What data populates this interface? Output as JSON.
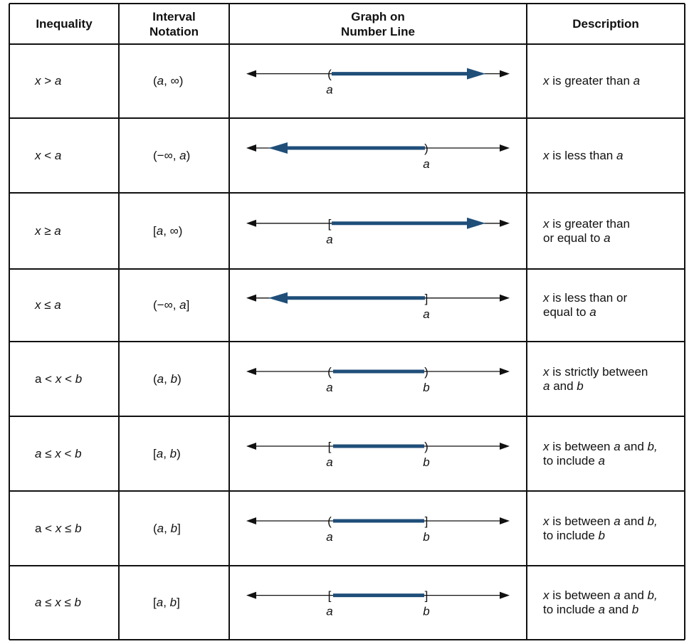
{
  "header": [
    "Inequality",
    "Interval\nNotation",
    "Graph on\nNumber Line",
    "Description"
  ],
  "rows": [
    {
      "inequality": [
        {
          "text": "x",
          "italic": true
        },
        {
          "text": " > "
        },
        {
          "text": "a",
          "italic": true
        }
      ],
      "interval": [
        {
          "text": "("
        },
        {
          "text": "a",
          "italic": true
        },
        {
          "text": ", ∞)"
        }
      ],
      "graph": {
        "from": {
          "bracket": "(",
          "label": "a"
        },
        "ray": "right"
      },
      "description": [
        {
          "text": "x",
          "italic": true
        },
        {
          "text": " is greater than "
        },
        {
          "text": "a",
          "italic": true
        }
      ]
    },
    {
      "inequality": [
        {
          "text": "x",
          "italic": true
        },
        {
          "text": " < "
        },
        {
          "text": "a",
          "italic": true
        }
      ],
      "interval": [
        {
          "text": "(−∞, "
        },
        {
          "text": "a",
          "italic": true
        },
        {
          "text": ")"
        }
      ],
      "graph": {
        "to": {
          "bracket": ")",
          "label": "a"
        },
        "ray": "left"
      },
      "description": [
        {
          "text": "x",
          "italic": true
        },
        {
          "text": " is less than "
        },
        {
          "text": "a",
          "italic": true
        }
      ]
    },
    {
      "inequality": [
        {
          "text": "x",
          "italic": true
        },
        {
          "text": " ≥ "
        },
        {
          "text": "a",
          "italic": true
        }
      ],
      "interval": [
        {
          "text": "["
        },
        {
          "text": "a",
          "italic": true
        },
        {
          "text": ", ∞)"
        }
      ],
      "graph": {
        "from": {
          "bracket": "[",
          "label": "a"
        },
        "ray": "right"
      },
      "description": [
        {
          "text": "x",
          "italic": true
        },
        {
          "text": " is greater than\nor equal to "
        },
        {
          "text": "a",
          "italic": true
        }
      ]
    },
    {
      "inequality": [
        {
          "text": "x",
          "italic": true
        },
        {
          "text": " ≤ "
        },
        {
          "text": "a",
          "italic": true
        }
      ],
      "interval": [
        {
          "text": "(−∞, "
        },
        {
          "text": "a",
          "italic": true
        },
        {
          "text": "]"
        }
      ],
      "graph": {
        "to": {
          "bracket": "]",
          "label": "a"
        },
        "ray": "left"
      },
      "description": [
        {
          "text": "x",
          "italic": true
        },
        {
          "text": " is less than or\nequal to "
        },
        {
          "text": "a",
          "italic": true
        }
      ]
    },
    {
      "inequality": [
        {
          "text": "a < "
        },
        {
          "text": "x",
          "italic": true
        },
        {
          "text": " < "
        },
        {
          "text": "b",
          "italic": true
        }
      ],
      "interval": [
        {
          "text": "("
        },
        {
          "text": "a",
          "italic": true
        },
        {
          "text": ", "
        },
        {
          "text": "b",
          "italic": true
        },
        {
          "text": ")"
        }
      ],
      "graph": {
        "from": {
          "bracket": "(",
          "label": "a"
        },
        "to": {
          "bracket": ")",
          "label": "b"
        }
      },
      "description": [
        {
          "text": "x",
          "italic": true
        },
        {
          "text": " is strictly between\n"
        },
        {
          "text": "a",
          "italic": true
        },
        {
          "text": " and "
        },
        {
          "text": "b",
          "italic": true
        }
      ]
    },
    {
      "inequality": [
        {
          "text": "a",
          "italic": true
        },
        {
          "text": " ≤ "
        },
        {
          "text": "x",
          "italic": true
        },
        {
          "text": " < "
        },
        {
          "text": "b",
          "italic": true
        }
      ],
      "interval": [
        {
          "text": "["
        },
        {
          "text": "a",
          "italic": true
        },
        {
          "text": ", "
        },
        {
          "text": "b",
          "italic": true
        },
        {
          "text": ")"
        }
      ],
      "graph": {
        "from": {
          "bracket": "[",
          "label": "a"
        },
        "to": {
          "bracket": ")",
          "label": "b"
        }
      },
      "description": [
        {
          "text": "x",
          "italic": true
        },
        {
          "text": " is between "
        },
        {
          "text": "a",
          "italic": true
        },
        {
          "text": " and "
        },
        {
          "text": "b,",
          "italic": true
        },
        {
          "text": "\nto include "
        },
        {
          "text": "a",
          "italic": true
        }
      ]
    },
    {
      "inequality": [
        {
          "text": "a < "
        },
        {
          "text": "x",
          "italic": true
        },
        {
          "text": " ≤ "
        },
        {
          "text": "b",
          "italic": true
        }
      ],
      "interval": [
        {
          "text": "("
        },
        {
          "text": "a",
          "italic": true
        },
        {
          "text": ", "
        },
        {
          "text": "b",
          "italic": true
        },
        {
          "text": "]"
        }
      ],
      "graph": {
        "from": {
          "bracket": "(",
          "label": "a"
        },
        "to": {
          "bracket": "]",
          "label": "b"
        }
      },
      "description": [
        {
          "text": "x",
          "italic": true
        },
        {
          "text": " is between "
        },
        {
          "text": "a",
          "italic": true
        },
        {
          "text": " and "
        },
        {
          "text": "b,",
          "italic": true
        },
        {
          "text": "\nto include "
        },
        {
          "text": "b",
          "italic": true
        }
      ]
    },
    {
      "inequality": [
        {
          "text": "a",
          "italic": true
        },
        {
          "text": " ≤ "
        },
        {
          "text": "x",
          "italic": true
        },
        {
          "text": " ≤ "
        },
        {
          "text": "b",
          "italic": true
        }
      ],
      "interval": [
        {
          "text": "["
        },
        {
          "text": "a",
          "italic": true
        },
        {
          "text": ", "
        },
        {
          "text": "b",
          "italic": true
        },
        {
          "text": "]"
        }
      ],
      "graph": {
        "from": {
          "bracket": "[",
          "label": "a"
        },
        "to": {
          "bracket": "]",
          "label": "b"
        }
      },
      "description": [
        {
          "text": "x",
          "italic": true
        },
        {
          "text": " is between "
        },
        {
          "text": "a",
          "italic": true
        },
        {
          "text": " and "
        },
        {
          "text": "b,",
          "italic": true
        },
        {
          "text": "\nto include "
        },
        {
          "text": "a",
          "italic": true
        },
        {
          "text": " and "
        },
        {
          "text": "b",
          "italic": true
        }
      ]
    }
  ]
}
